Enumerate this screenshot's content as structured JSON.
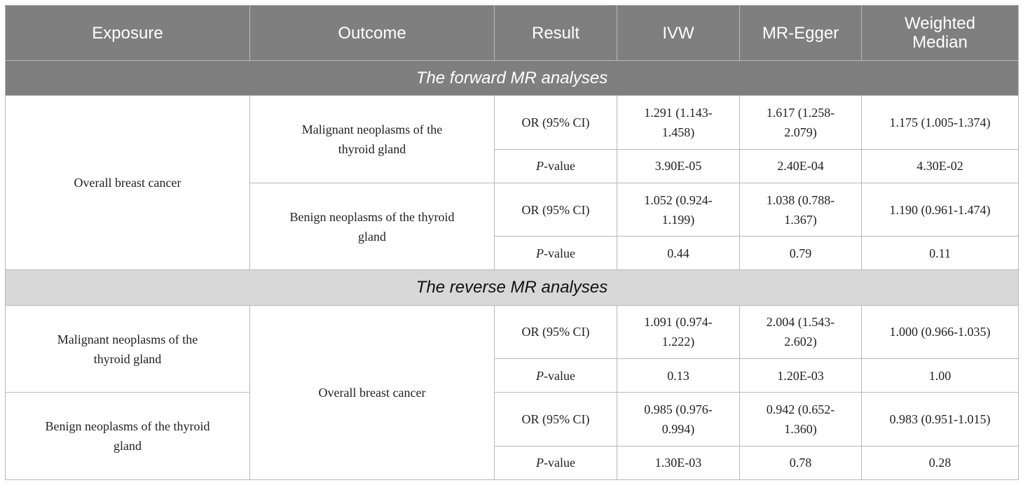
{
  "headers": [
    "Exposure",
    "Outcome",
    "Result",
    "IVW",
    "MR-Egger",
    "Weighted Median"
  ],
  "sections": [
    {
      "title": "The forward MR analyses",
      "groups": [
        {
          "exposure": "Overall breast cancer",
          "outcomes": [
            {
              "outcome": "Malignant neoplasms of the thyroid gland",
              "or": {
                "label": "OR (95% CI)",
                "ivw": "1.291 (1.143-1.458)",
                "egger": "1.617 (1.258-2.079)",
                "wm": "1.175 (1.005-1.374)"
              },
              "p": {
                "label_p": "P",
                "label_rest": "-value",
                "ivw": "3.90E-05",
                "egger": "2.40E-04",
                "wm": "4.30E-02"
              }
            },
            {
              "outcome": "Benign neoplasms of the thyroid gland",
              "or": {
                "label": "OR (95% CI)",
                "ivw": "1.052 (0.924-1.199)",
                "egger": "1.038 (0.788-1.367)",
                "wm": "1.190 (0.961-1.474)"
              },
              "p": {
                "label_p": "P",
                "label_rest": "-value",
                "ivw": "0.44",
                "egger": "0.79",
                "wm": "0.11"
              }
            }
          ]
        }
      ]
    },
    {
      "title": "The reverse MR analyses",
      "outcome": "Overall breast cancer",
      "groups": [
        {
          "exposure": "Malignant neoplasms of the thyroid gland",
          "or": {
            "label": "OR (95% CI)",
            "ivw": "1.091 (0.974-1.222)",
            "egger": "2.004 (1.543-2.602)",
            "wm": "1.000 (0.966-1.035)"
          },
          "p": {
            "label_p": "P",
            "label_rest": "-value",
            "ivw": "0.13",
            "egger": "1.20E-03",
            "wm": "1.00"
          }
        },
        {
          "exposure": "Benign neoplasms of the thyroid gland",
          "or": {
            "label": "OR (95% CI)",
            "ivw": "0.985 (0.976-0.994)",
            "egger": "0.942 (0.652-1.360)",
            "wm": "0.983 (0.951-1.015)"
          },
          "p": {
            "label_p": "P",
            "label_rest": "-value",
            "ivw": "1.30E-03",
            "egger": "0.78",
            "wm": "0.28"
          }
        }
      ]
    }
  ]
}
